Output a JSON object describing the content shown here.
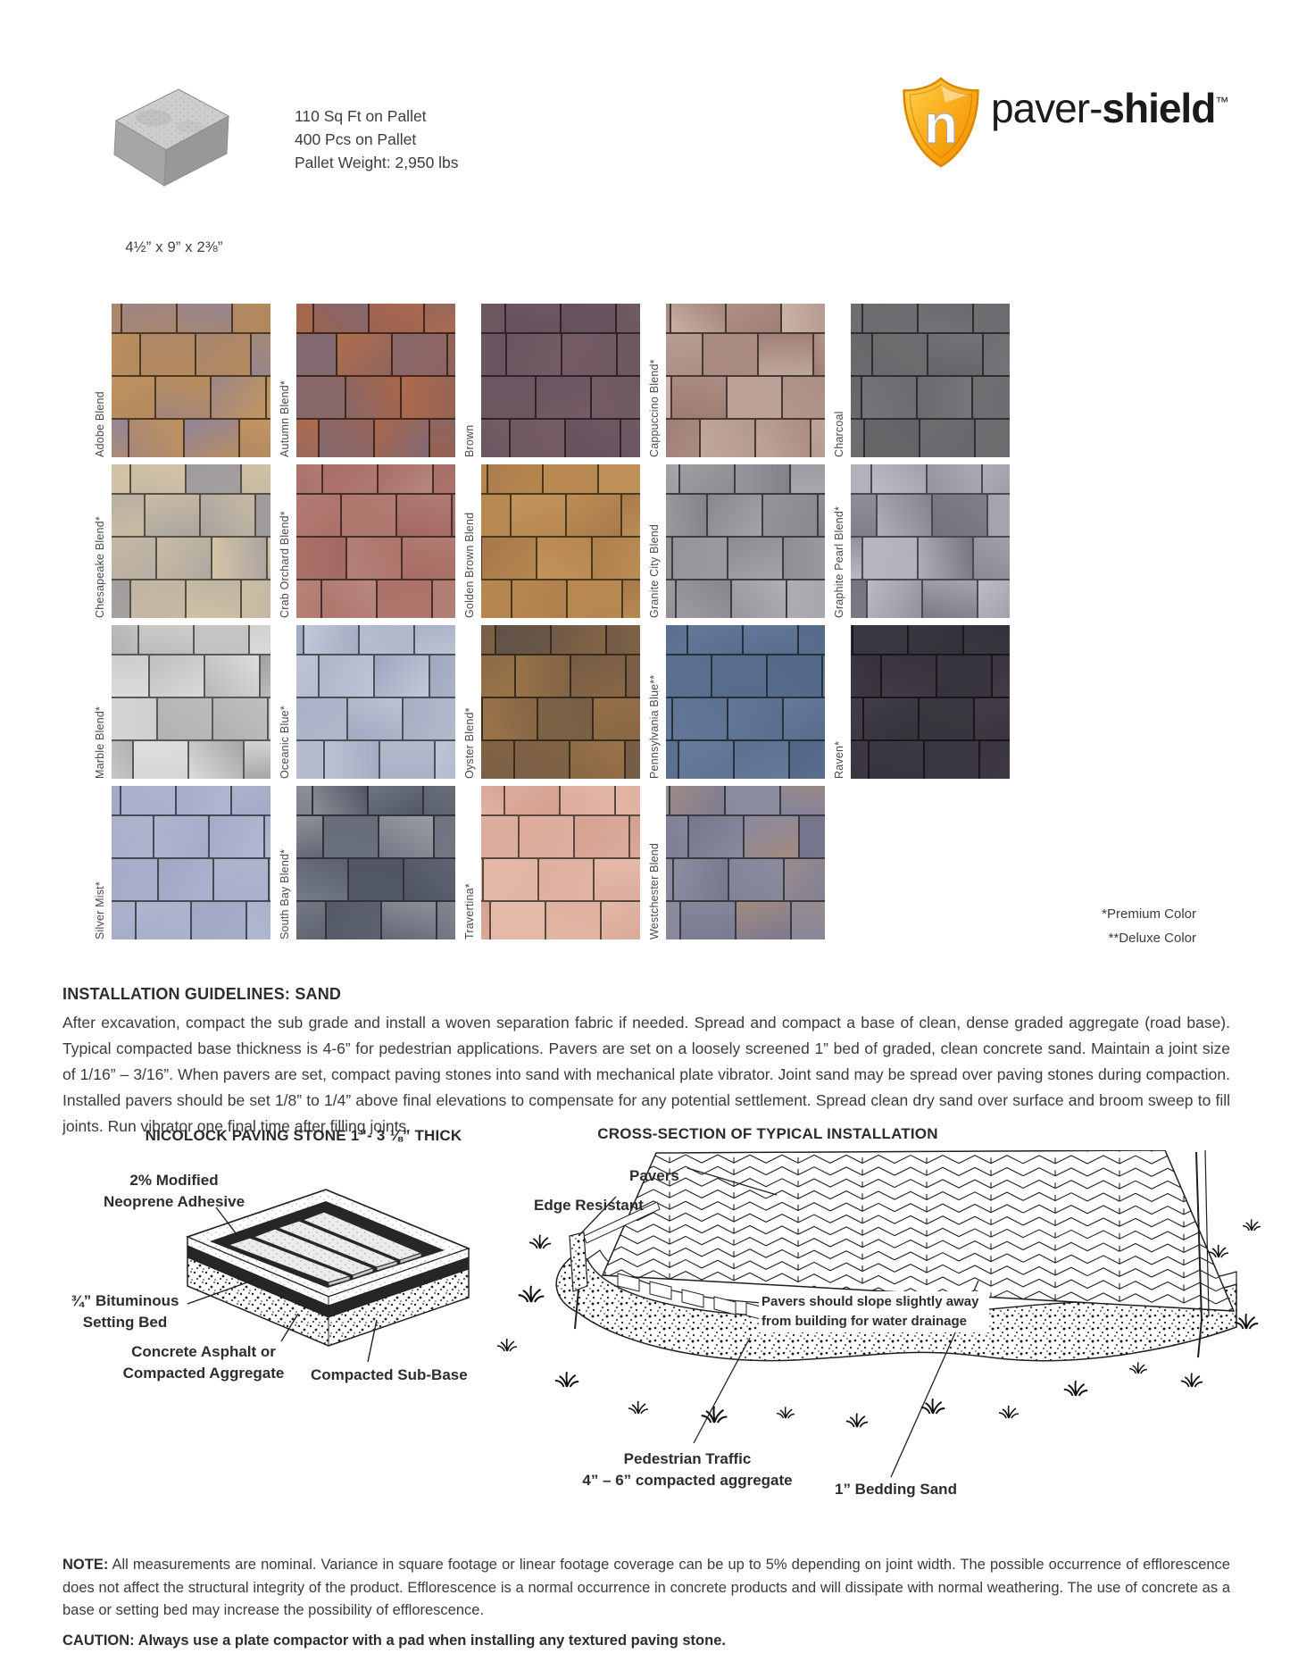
{
  "product": {
    "pallet_specs": [
      "110 Sq Ft on Pallet",
      "400 Pcs on Pallet",
      "Pallet Weight: 2,950 lbs"
    ],
    "dimensions": "4½” x 9” x 2⅜”"
  },
  "logo": {
    "letter": "n",
    "brand_light": "paver-",
    "brand_bold": "shield",
    "trademark": "™",
    "shield_color": "#f7a11c"
  },
  "swatches": {
    "footnote_premium": "*Premium Color",
    "footnote_deluxe": "**Deluxe Color",
    "items": [
      {
        "label": "Adobe Blend",
        "base": "#b5895a",
        "accent": "#8e84a0",
        "accent2": "#c99a64"
      },
      {
        "label": "Autumn Blend*",
        "base": "#a06048",
        "accent": "#7d6a78",
        "accent2": "#b4714f"
      },
      {
        "label": "Brown",
        "base": "#705862",
        "accent": "#64505c",
        "accent2": "#7a6068"
      },
      {
        "label": "Cappuccino Blend*",
        "base": "#a98a80",
        "accent": "#cbb5a8",
        "accent2": "#97756c"
      },
      {
        "label": "Charcoal",
        "base": "#6f6f72",
        "accent": "#636366",
        "accent2": "#7a7a7e"
      },
      {
        "label": "Chesapeake Blend*",
        "base": "#cec0a5",
        "accent": "#9e9a9e",
        "accent2": "#d9c8a8"
      },
      {
        "label": "Crab Orchard Blend*",
        "base": "#ab7168",
        "accent": "#b98a80",
        "accent2": "#9d655e"
      },
      {
        "label": "Golden Brown Blend",
        "base": "#b5854e",
        "accent": "#c3955c",
        "accent2": "#a1744a"
      },
      {
        "label": "Granite City Blend",
        "base": "#94949a",
        "accent": "#b0afb4",
        "accent2": "#7c7c82"
      },
      {
        "label": "Graphite Pearl Blend*",
        "base": "#b3b2bb",
        "accent": "#6f6e79",
        "accent2": "#c5c4cc"
      },
      {
        "label": "Marble Blend*",
        "base": "#d5d5d3",
        "accent": "#9d9d9b",
        "accent2": "#e3e3e1"
      },
      {
        "label": "Oceanic Blue*",
        "base": "#b7bed0",
        "accent": "#9aa3bc",
        "accent2": "#c8cddd"
      },
      {
        "label": "Oyster Blend*",
        "base": "#8a6844",
        "accent": "#5f5149",
        "accent2": "#a87f4e"
      },
      {
        "label": "Pennsylvania Blue**",
        "base": "#5d7292",
        "accent": "#4e6383",
        "accent2": "#6a7f9e"
      },
      {
        "label": "Raven*",
        "base": "#3b3740",
        "accent": "#332f38",
        "accent2": "#443f48"
      },
      {
        "label": "Silver Mist*",
        "base": "#a9b0cb",
        "accent": "#9ea5c2",
        "accent2": "#b4bad3"
      },
      {
        "label": "South Bay Blend*",
        "base": "#767b88",
        "accent": "#4b505e",
        "accent2": "#a8a9ae"
      },
      {
        "label": "Travertina*",
        "base": "#dcab9b",
        "accent": "#e5bca9",
        "accent2": "#d09a8a"
      },
      {
        "label": "Westchester Blend",
        "base": "#8d8da1",
        "accent": "#6f7088",
        "accent2": "#b08a6a"
      }
    ]
  },
  "guidelines": {
    "title": "INSTALLATION GUIDELINES: SAND",
    "body": "After excavation, compact the sub grade and install a woven separation fabric if needed.  Spread and compact a base of clean, dense graded aggregate (road base). Typical compacted base thickness is 4-6” for pedestrian applications. Pavers are set on a loosely screened 1” bed of graded, clean concrete sand.  Maintain a joint size of 1/16” – 3/16”. When pavers are set, compact paving stones into sand with mechanical plate vibrator. Joint sand may be spread over paving stones during compaction. Installed pavers should be set 1/8” to 1/4” above final elevations to compensate for any potential settlement. Spread clean dry sand over surface and broom sweep to fill joints. Run vibrator one final time after filling joints."
  },
  "left_diagram": {
    "title": "NICOLOCK PAVING STONE 1”- 3 ⅛” THICK",
    "label_adhesive_1": "2% Modified",
    "label_adhesive_2": "Neoprene Adhesive",
    "label_bituminous_1": "¾” Bituminous",
    "label_bituminous_2": "Setting Bed",
    "label_aggregate_1": "Concrete Asphalt or",
    "label_aggregate_2": "Compacted Aggregate",
    "label_subbase": "Compacted Sub-Base"
  },
  "right_diagram": {
    "title": "CROSS-SECTION OF TYPICAL INSTALLATION",
    "label_pavers": "Pavers",
    "label_edge": "Edge Resistant",
    "label_slope_1": "Pavers should slope slightly away",
    "label_slope_2": "from building for water drainage",
    "label_pedestrian": "Pedestrian Traffic",
    "label_aggregate": "4” – 6” compacted aggregate",
    "label_bedding": "1” Bedding Sand"
  },
  "note": {
    "label": "NOTE:",
    "text": "All measurements are nominal. Variance in square footage or linear footage coverage can be up to 5% depending on joint width. The possible occurrence of efflorescence does not affect the structural integrity of the product. Efflorescence is a normal occurrence in concrete products and will dissipate with normal weathering. The use of concrete as a base or setting bed may increase the possibility of efflorescence."
  },
  "caution": {
    "label": "CAUTION:",
    "text": "Always use a plate compactor with a pad when installing any textured paving stone."
  }
}
